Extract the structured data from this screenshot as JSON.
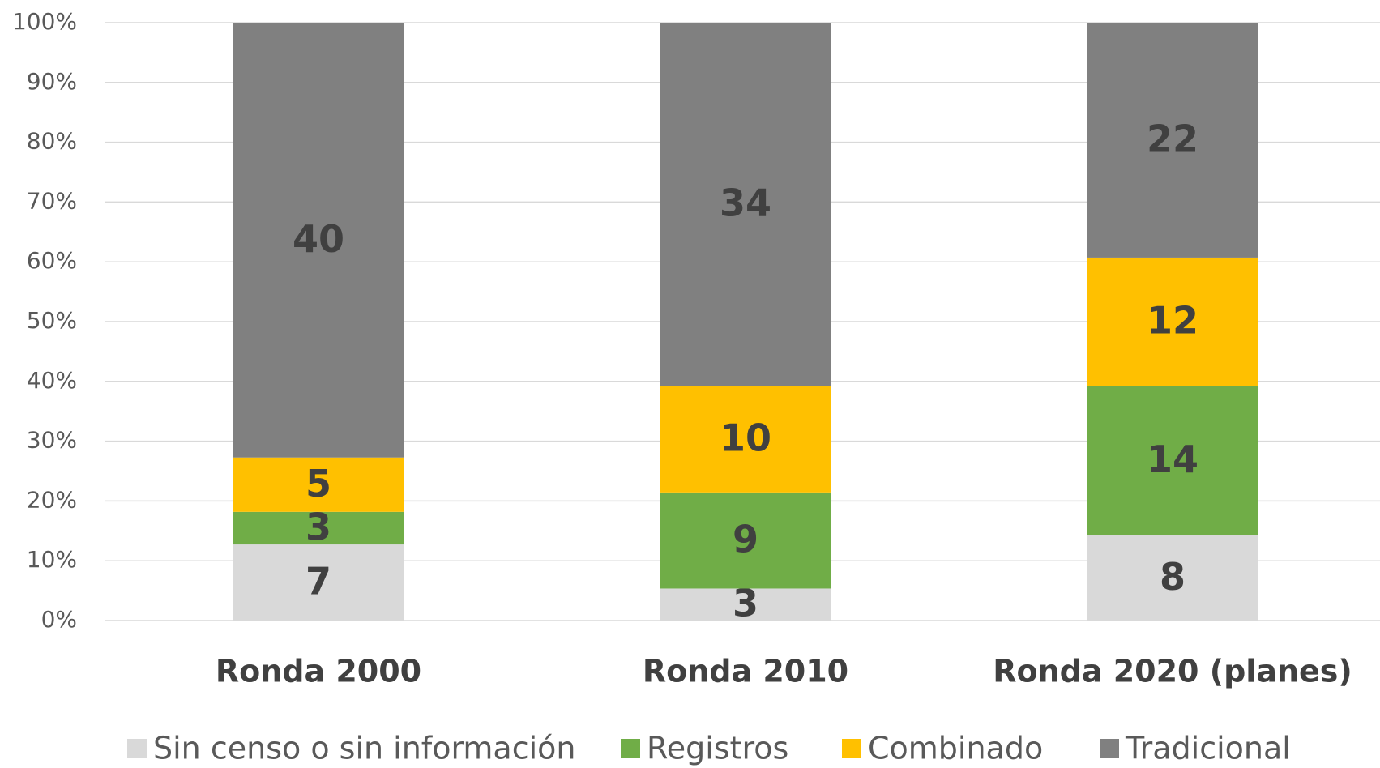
{
  "chart_data": {
    "type": "bar",
    "stacking": "percent",
    "categories": [
      "Ronda 2000",
      "Ronda 2010",
      "Ronda 2020 (planes)"
    ],
    "series": [
      {
        "name": "Sin censo o sin información",
        "color": "#d9d9d9",
        "values": [
          7,
          3,
          8
        ]
      },
      {
        "name": "Registros",
        "color": "#70ad47",
        "values": [
          3,
          9,
          14
        ]
      },
      {
        "name": "Combinado",
        "color": "#ffc000",
        "values": [
          5,
          10,
          12
        ]
      },
      {
        "name": "Tradicional",
        "color": "#808080",
        "values": [
          40,
          34,
          22
        ]
      }
    ],
    "ylim": [
      0,
      100
    ],
    "yticks": [
      {
        "value": 0,
        "label": "0%"
      },
      {
        "value": 10,
        "label": "10%"
      },
      {
        "value": 20,
        "label": "20%"
      },
      {
        "value": 30,
        "label": "30%"
      },
      {
        "value": 40,
        "label": "40%"
      },
      {
        "value": 50,
        "label": "50%"
      },
      {
        "value": 60,
        "label": "60%"
      },
      {
        "value": 70,
        "label": "70%"
      },
      {
        "value": 80,
        "label": "80%"
      },
      {
        "value": 90,
        "label": "90%"
      },
      {
        "value": 100,
        "label": "100%"
      }
    ],
    "grid": true,
    "legend": "bottom"
  }
}
